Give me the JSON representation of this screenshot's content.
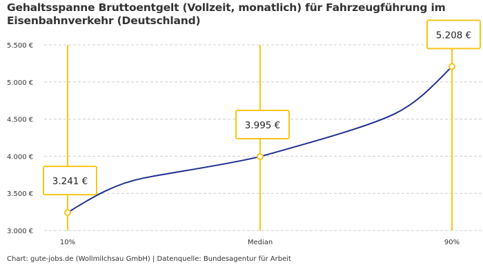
{
  "chart_data": {
    "type": "line",
    "title": "Gehaltsspanne Bruttoentgelt (Vollzeit, monatlich) für Fahrzeugführung im Eisenbahnverkehr (Deutschland)",
    "categories": [
      "10%",
      "Median",
      "90%"
    ],
    "values": [
      3241,
      3995,
      5208
    ],
    "data_labels": [
      "3.241 €",
      "3.995 €",
      "5.208 €"
    ],
    "ylim": [
      3000,
      5500
    ],
    "yticks": [
      3000,
      3500,
      4000,
      4500,
      5000,
      5500
    ],
    "ytick_labels": [
      "3.000 €",
      "3.500 €",
      "4.000 €",
      "4.500 €",
      "5.000 €",
      "5.500 €"
    ],
    "grid": "horizontal dashed",
    "legend": "none",
    "colors": {
      "line": "#1f2f8f",
      "marker": "#f5c518",
      "grid": "#cccccc"
    }
  },
  "footer": "Chart: gute-jobs.de (Wollmilchsau GmbH) | Datenquelle: Bundesagentur für Arbeit"
}
